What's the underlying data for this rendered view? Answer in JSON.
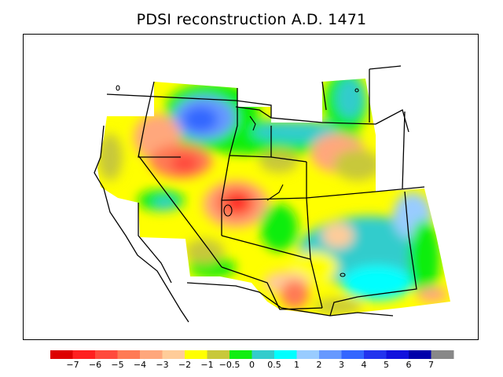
{
  "title": "PDSI reconstruction A.D. 1471",
  "legend": {
    "colors": [
      "#dd0000",
      "#ff2020",
      "#ff4a3c",
      "#ff7a55",
      "#ffa77c",
      "#ffcc99",
      "#ffff00",
      "#c8c83a",
      "#11ee11",
      "#33cccc",
      "#00ffff",
      "#99ccff",
      "#6699ff",
      "#3366ff",
      "#2233ee",
      "#1111dd",
      "#0000aa",
      "#888888"
    ],
    "labels": [
      "−7",
      "−6",
      "−5",
      "−4",
      "−3",
      "−2",
      "−1",
      "−0.5",
      "0",
      "0.5",
      "1",
      "2",
      "3",
      "4",
      "5",
      "6",
      "7"
    ]
  }
}
